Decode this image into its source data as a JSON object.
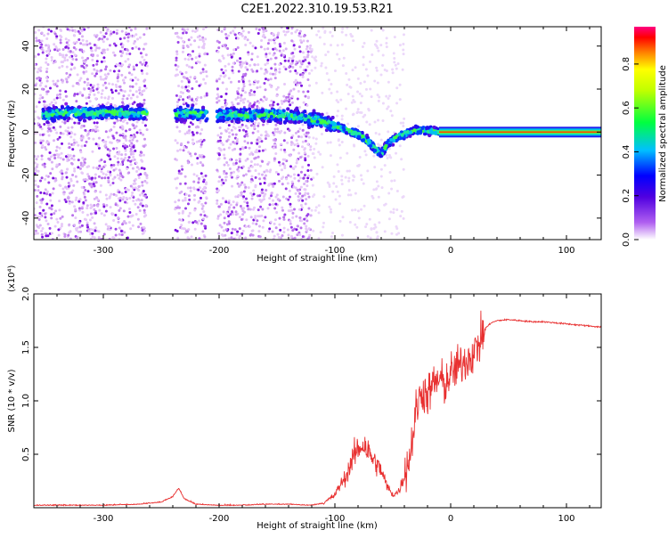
{
  "title": "C2E1.2022.310.19.53.R21",
  "chart_data": [
    {
      "type": "heatmap",
      "title": "C2E1.2022.310.19.53.R21",
      "xlabel": "Height of straight line (km)",
      "ylabel": "Frequency (Hz)",
      "xlim": [
        -360,
        130
      ],
      "ylim": [
        -50,
        49
      ],
      "xticks": [
        -300,
        -200,
        -100,
        0,
        100
      ],
      "yticks": [
        -40,
        -20,
        0,
        20,
        40
      ],
      "colorbar": {
        "label": "Normalized spectral amplitude",
        "range": [
          0,
          0.97
        ],
        "ticks": [
          0.0,
          0.2,
          0.4,
          0.6,
          0.8
        ],
        "colormap": [
          "#ffffff",
          "#a020f0",
          "#0000ff",
          "#00ffff",
          "#00ff00",
          "#ffff00",
          "#ff0000",
          "#ff0080"
        ]
      },
      "trace": {
        "x": [
          -350,
          -330,
          -300,
          -270,
          -245,
          -225,
          -200,
          -175,
          -150,
          -130,
          -110,
          -100,
          -90,
          -80,
          -72,
          -65,
          -60,
          -55,
          -48,
          -40,
          -30,
          -20,
          -10,
          -5,
          0,
          20,
          60,
          100,
          130
        ],
        "y": [
          8,
          9,
          9,
          9,
          8,
          9,
          8,
          8,
          8,
          7,
          5,
          3,
          1,
          -1,
          -4,
          -8,
          -10,
          -6,
          -3,
          -1,
          1,
          0.5,
          0,
          1,
          0,
          0,
          0,
          0,
          0
        ]
      },
      "data_gaps": [
        [
          -262,
          -238
        ],
        [
          -210,
          -202
        ]
      ],
      "grid": false,
      "legend": "none"
    },
    {
      "type": "line",
      "xlabel": "Height of straight line (km)",
      "ylabel": "SNR (10 * v/v)",
      "multiplier_label": "(x10⁴)",
      "xlim": [
        -360,
        130
      ],
      "ylim": [
        0,
        2.0
      ],
      "xticks": [
        -300,
        -200,
        -100,
        0,
        100
      ],
      "yticks": [
        0.5,
        1.0,
        1.5,
        2.0
      ],
      "series": [
        {
          "color": "#e83030",
          "x": [
            -360,
            -330,
            -300,
            -270,
            -250,
            -240,
            -235,
            -230,
            -220,
            -200,
            -180,
            -160,
            -140,
            -120,
            -110,
            -100,
            -95,
            -90,
            -85,
            -80,
            -75,
            -70,
            -65,
            -60,
            -55,
            -50,
            -45,
            -40,
            -35,
            -30,
            -25,
            -20,
            -15,
            -10,
            -5,
            0,
            5,
            10,
            15,
            20,
            25,
            30,
            35,
            40,
            50,
            60,
            70,
            80,
            90,
            100,
            110,
            120,
            130
          ],
          "y": [
            0.02,
            0.02,
            0.02,
            0.03,
            0.05,
            0.1,
            0.18,
            0.08,
            0.03,
            0.02,
            0.02,
            0.03,
            0.03,
            0.02,
            0.04,
            0.12,
            0.22,
            0.3,
            0.45,
            0.55,
            0.6,
            0.5,
            0.42,
            0.35,
            0.2,
            0.12,
            0.15,
            0.3,
            0.5,
            0.9,
            1.1,
            1.05,
            1.15,
            1.2,
            1.15,
            1.25,
            1.3,
            1.35,
            1.4,
            1.45,
            1.55,
            1.68,
            1.73,
            1.75,
            1.76,
            1.75,
            1.74,
            1.74,
            1.73,
            1.72,
            1.71,
            1.7,
            1.69
          ]
        }
      ],
      "grid": false,
      "legend": "none"
    }
  ]
}
